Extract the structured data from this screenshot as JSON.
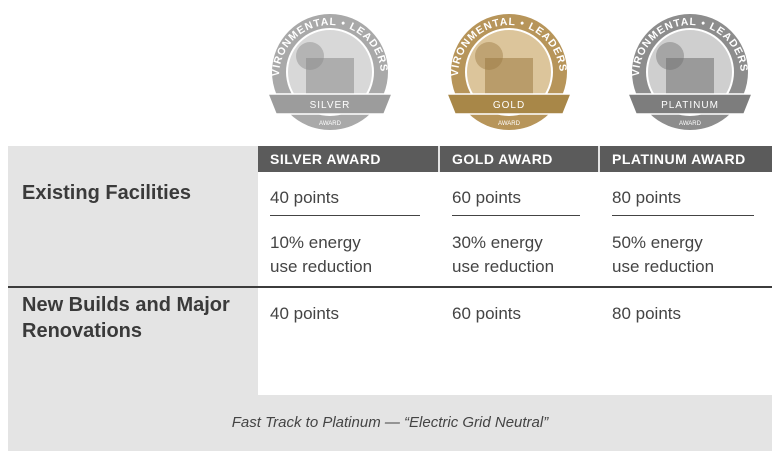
{
  "badges": [
    {
      "arc": "ENVIRONMENTAL • LEADERSHIP",
      "level": "SILVER",
      "award": "AWARD"
    },
    {
      "arc": "ENVIRONMENTAL • LEADERSHIP",
      "level": "GOLD",
      "award": "AWARD"
    },
    {
      "arc": "ENVIRONMENTAL • LEADERSHIP",
      "level": "PLATINUM",
      "award": "AWARD"
    }
  ],
  "table": {
    "columns": [
      "SILVER AWARD",
      "GOLD AWARD",
      "PLATINUM AWARD"
    ],
    "rows": [
      {
        "label": "Existing Facilities",
        "cells": [
          [
            "40 points",
            "10% energy",
            "use reduction"
          ],
          [
            "60 points",
            "30% energy",
            "use reduction"
          ],
          [
            "80 points",
            "50% energy",
            "use reduction"
          ]
        ]
      },
      {
        "label": "New Builds and Major Renovations",
        "cells": [
          [
            "40 points"
          ],
          [
            "60 points"
          ],
          [
            "80 points"
          ]
        ]
      }
    ],
    "footer": "Fast Track to Platinum — “Electric Grid Neutral”"
  }
}
